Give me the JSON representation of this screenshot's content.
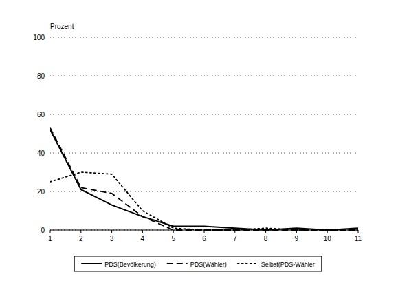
{
  "chart_data": {
    "type": "line",
    "y_label": "Prozent",
    "x": [
      1,
      2,
      3,
      4,
      5,
      6,
      7,
      8,
      9,
      10,
      11
    ],
    "xlim": [
      1,
      11
    ],
    "xticks": [
      1,
      2,
      3,
      4,
      5,
      6,
      7,
      8,
      9,
      10,
      11
    ],
    "ylim": [
      0,
      100
    ],
    "yticks": [
      0,
      20,
      40,
      60,
      80,
      100
    ],
    "grid": true,
    "legend": "bottom",
    "series": [
      {
        "name": "PDS(Bevölkerung)",
        "color": "#000000",
        "line_style": "solid",
        "values": [
          52,
          21,
          13,
          7,
          2,
          2,
          1,
          0,
          1,
          0,
          1
        ]
      },
      {
        "name": "PDS(Wähler)",
        "color": "#000000",
        "line_style": "dashed",
        "values": [
          53,
          22,
          19,
          7,
          0,
          0,
          0,
          0,
          0,
          0,
          0
        ]
      },
      {
        "name": "Selbst(PDS-Wähler",
        "color": "#000000",
        "line_style": "dotted",
        "values": [
          25,
          30,
          29,
          10,
          1,
          0,
          0,
          1,
          0,
          0,
          0
        ]
      }
    ]
  }
}
